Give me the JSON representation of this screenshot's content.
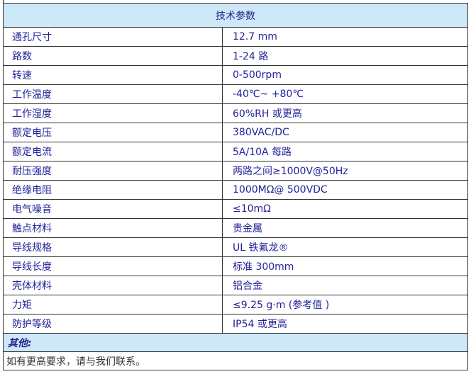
{
  "title": "技术参数",
  "rows": [
    {
      "label": "通孔尺寸",
      "value": "12.7 mm"
    },
    {
      "label": "路数",
      "value": "1-24 路"
    },
    {
      "label": "转速",
      "value": "0-500rpm"
    },
    {
      "label": "工作温度",
      "value": "-40℃~ +80℃"
    },
    {
      "label": "工作湿度",
      "value": "60%RH 或更高"
    },
    {
      "label": "额定电压",
      "value": "380VAC/DC"
    },
    {
      "label": "额定电流",
      "value": "5A/10A 每路"
    },
    {
      "label": "耐压强度",
      "value": "两路之间≥1000V@50Hz"
    },
    {
      "label": "绝缘电阻",
      "value": "1000MΩ@ 500VDC"
    },
    {
      "label": "电气噪音",
      "value": "≤10mΩ"
    },
    {
      "label": "触点材料",
      "value": "贵金属"
    },
    {
      "label": "导线规格",
      "value": "UL 铁氟龙®"
    },
    {
      "label": "导线长度",
      "value": "标准 300mm"
    },
    {
      "label": "壳体材料",
      "value": "铝合金"
    },
    {
      "label": "力矩",
      "value": "≤9.25 g·m  (参考值 )"
    },
    {
      "label": "防护等级",
      "value": "IP54 或更高"
    }
  ],
  "other_label": "其他:",
  "note": "如有更高要求，请与我们联系。",
  "colors": {
    "header_bg": "#cde8f8",
    "text": "#22229a"
  }
}
